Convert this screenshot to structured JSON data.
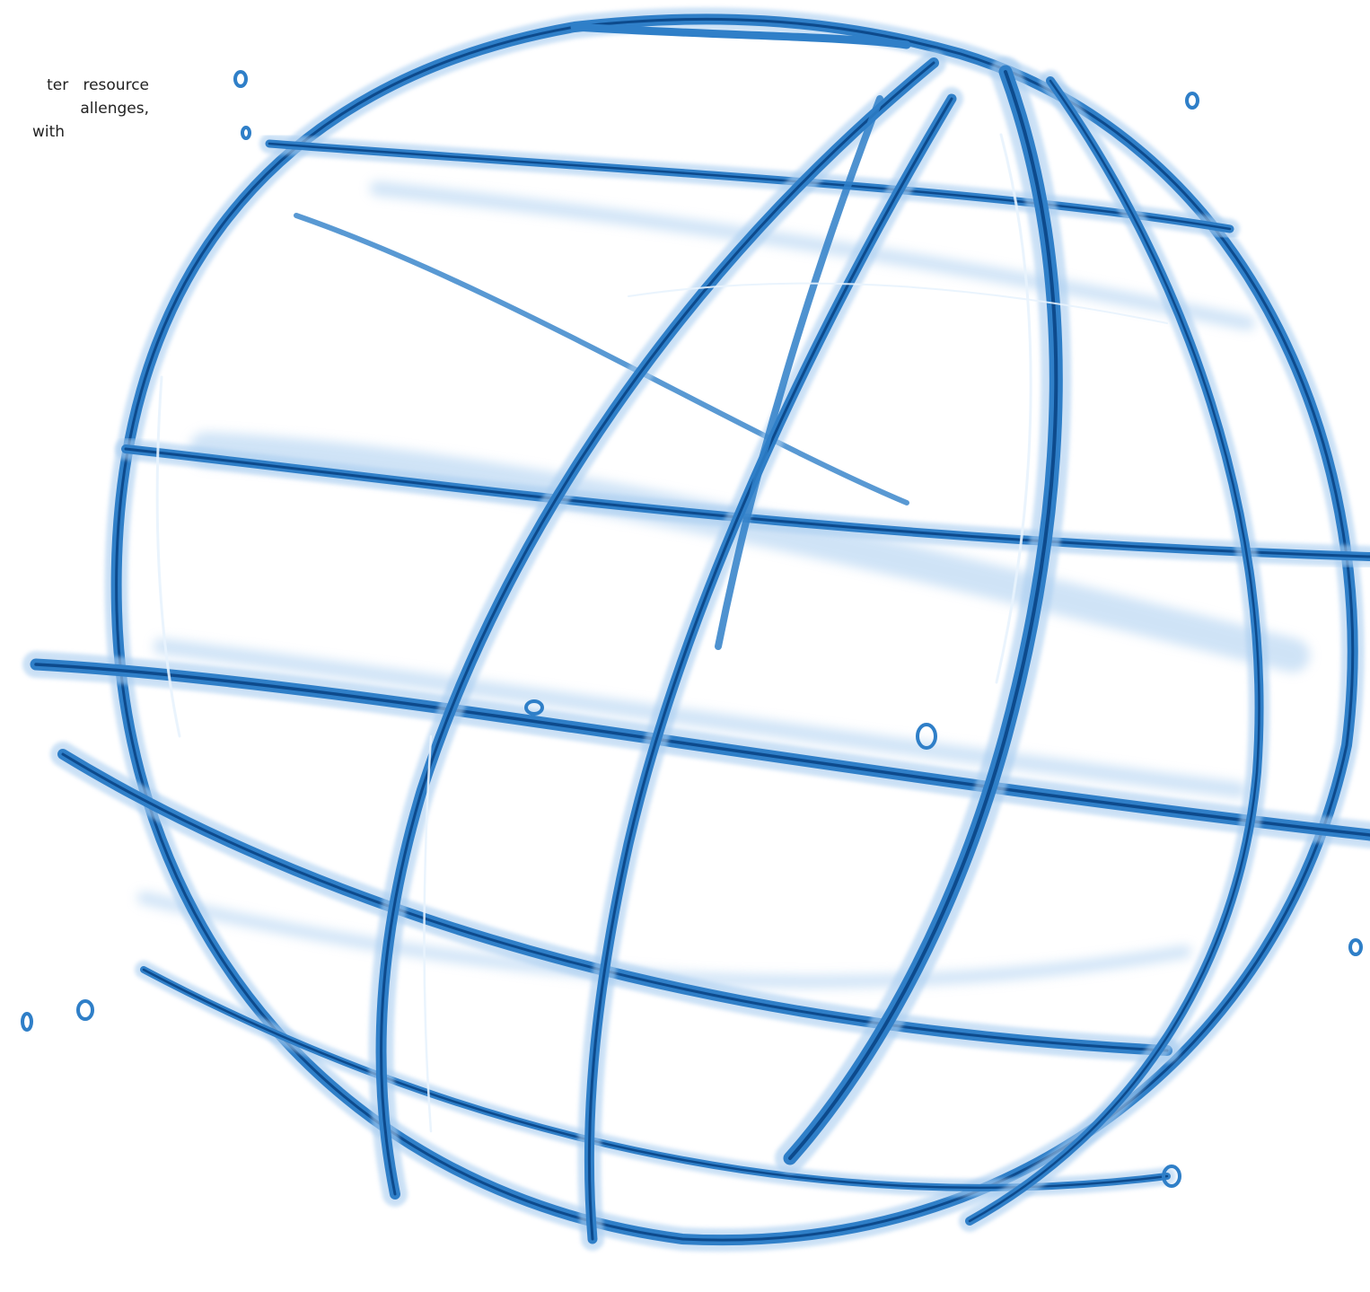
{
  "text_fragment": {
    "lines": [
      "ter   resource",
      "allenges,",
      "with"
    ]
  },
  "image": {
    "icon": "water-globe-splash",
    "colors": {
      "deep": "#0d4a8c",
      "mid": "#2f7fc8",
      "light": "#a9cdf0",
      "highlight": "#e8f3fd"
    }
  }
}
